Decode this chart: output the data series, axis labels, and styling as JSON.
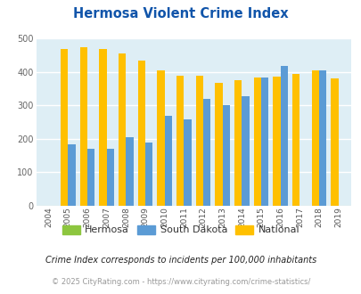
{
  "title": "Hermosa Violent Crime Index",
  "years": [
    2004,
    2005,
    2006,
    2007,
    2008,
    2009,
    2010,
    2011,
    2012,
    2013,
    2014,
    2015,
    2016,
    2017,
    2018,
    2019
  ],
  "hermosa": [
    0,
    0,
    0,
    0,
    0,
    0,
    0,
    0,
    0,
    0,
    0,
    0,
    0,
    0,
    0,
    0
  ],
  "south_dakota": [
    0,
    183,
    170,
    171,
    205,
    189,
    268,
    257,
    320,
    301,
    328,
    384,
    418,
    0,
    405,
    0
  ],
  "national": [
    0,
    469,
    474,
    467,
    455,
    432,
    405,
    387,
    387,
    368,
    376,
    383,
    386,
    394,
    405,
    379
  ],
  "colors": {
    "hermosa": "#8dc63f",
    "south_dakota": "#5b9bd5",
    "national": "#ffc000"
  },
  "ylim": [
    0,
    500
  ],
  "yticks": [
    0,
    100,
    200,
    300,
    400,
    500
  ],
  "bg_color": "#deeef5",
  "legend_labels": [
    "Hermosa",
    "South Dakota",
    "National"
  ],
  "footnote1": "Crime Index corresponds to incidents per 100,000 inhabitants",
  "footnote2": "© 2025 CityRating.com - https://www.cityrating.com/crime-statistics/",
  "title_color": "#1155aa",
  "footnote1_color": "#222222",
  "footnote2_color": "#999999",
  "bar_width": 0.38
}
